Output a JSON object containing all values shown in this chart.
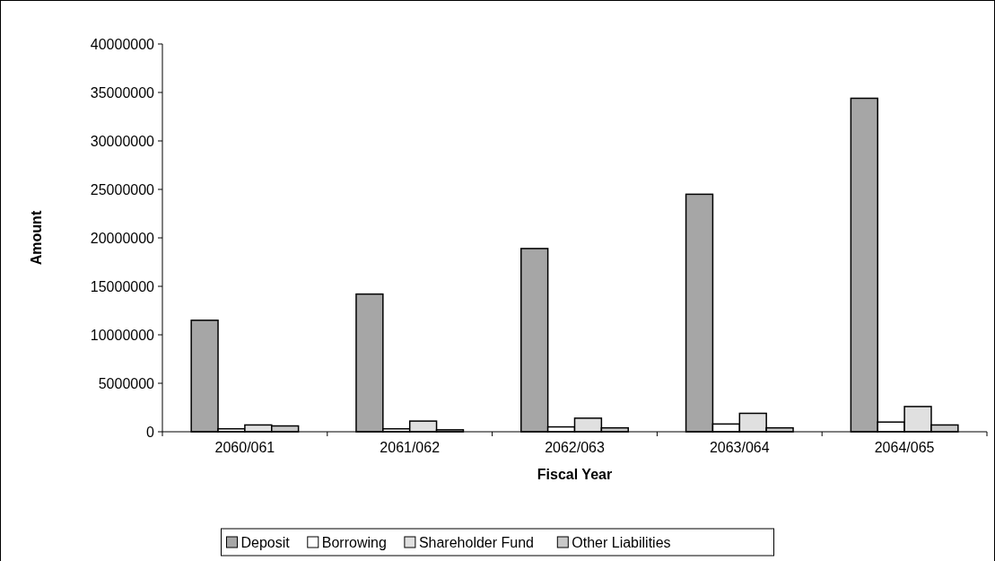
{
  "chart_data": {
    "type": "bar",
    "xlabel": "Fiscal Year",
    "ylabel": "Amount",
    "categories": [
      "2060/061",
      "2061/062",
      "2062/063",
      "2063/064",
      "2064/065"
    ],
    "series": [
      {
        "name": "Deposit",
        "color": "#a6a6a6",
        "values": [
          11500000,
          14200000,
          18900000,
          24500000,
          34400000
        ]
      },
      {
        "name": "Borrowing",
        "color": "#ffffff",
        "values": [
          300000,
          300000,
          500000,
          800000,
          1000000
        ]
      },
      {
        "name": "Shareholder Fund",
        "color": "#e0e0e0",
        "values": [
          700000,
          1100000,
          1400000,
          1900000,
          2600000
        ]
      },
      {
        "name": "Other Liabilities",
        "color": "#c8c8c8",
        "values": [
          600000,
          200000,
          400000,
          400000,
          700000
        ]
      }
    ],
    "ylim": [
      0,
      40000000
    ],
    "yticks": [
      0,
      5000000,
      10000000,
      15000000,
      20000000,
      25000000,
      30000000,
      35000000,
      40000000
    ],
    "grid": false,
    "legend": "bottom"
  }
}
